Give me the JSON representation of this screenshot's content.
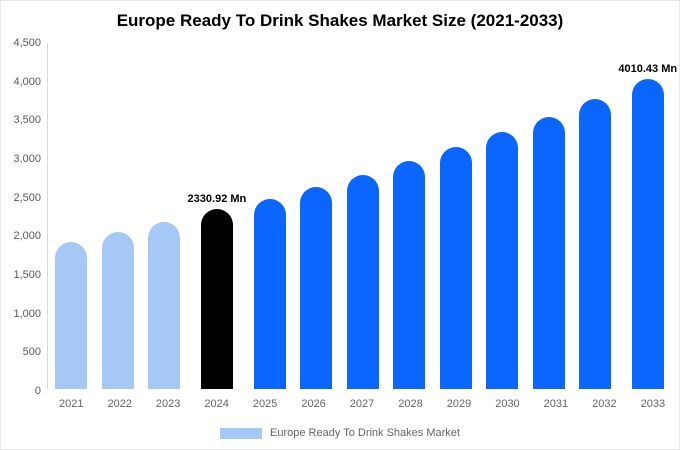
{
  "title": "Europe Ready To Drink Shakes Market Size (2021-2033)",
  "legend": {
    "label": "Europe Ready To Drink Shakes Market",
    "swatch_color": "#a6c8f7"
  },
  "colors": {
    "historical_bar": "#a6c8f7",
    "base_year_bar": "#000000",
    "forecast_bar": "#0a66ff",
    "axis_line": "#d9d9d9",
    "axis_text": "#666666"
  },
  "chart_data": {
    "type": "bar",
    "title": "Europe Ready To Drink Shakes Market Size (2021-2033)",
    "categories": [
      "2021",
      "2022",
      "2023",
      "2024",
      "2025",
      "2026",
      "2027",
      "2028",
      "2029",
      "2030",
      "2031",
      "2032",
      "2033"
    ],
    "values": [
      1905,
      2030,
      2160,
      2330.92,
      2455,
      2610,
      2765,
      2945,
      3125,
      3325,
      3520,
      3755,
      4010.43
    ],
    "bar_colors": [
      "#a6c8f7",
      "#a6c8f7",
      "#a6c8f7",
      "#000000",
      "#0a66ff",
      "#0a66ff",
      "#0a66ff",
      "#0a66ff",
      "#0a66ff",
      "#0a66ff",
      "#0a66ff",
      "#0a66ff",
      "#0a66ff"
    ],
    "annotations": [
      {
        "index": 3,
        "text": "2330.92 Mn"
      },
      {
        "index": 12,
        "text": "4010.43 Mn"
      }
    ],
    "xlabel": "",
    "ylabel": "",
    "ylim": [
      0,
      4500
    ],
    "ytick_labels": [
      "0",
      "500",
      "1,000",
      "1,500",
      "2,000",
      "2,500",
      "3,000",
      "3,500",
      "4,000",
      "4,500"
    ],
    "grid": false,
    "legend_position": "bottom",
    "unit": "Mn"
  }
}
